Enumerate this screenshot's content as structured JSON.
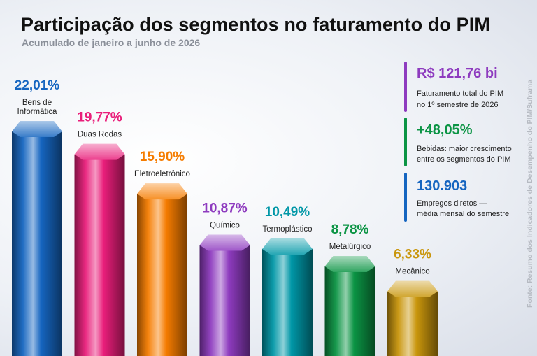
{
  "header": {
    "title": "Participação dos segmentos no faturamento do PIM",
    "subtitle": "Acumulado de janeiro a junho de 2026"
  },
  "chart_data": {
    "type": "bar",
    "categories": [
      "Bens de Informática",
      "Duas Rodas",
      "Eletroeletrônico",
      "Químico",
      "Termoplástico",
      "Metalúrgico",
      "Mecânico"
    ],
    "category_lines": [
      [
        "Bens de",
        "Informática"
      ],
      [
        "Duas Rodas"
      ],
      [
        "Eletroeletrônico"
      ],
      [
        "Químico"
      ],
      [
        "Termoplástico"
      ],
      [
        "Metalúrgico"
      ],
      [
        "Mecânico"
      ]
    ],
    "values": [
      22.01,
      19.77,
      15.9,
      10.87,
      10.49,
      8.78,
      6.33
    ],
    "value_labels": [
      "22,01%",
      "19,77%",
      "15,90%",
      "10,87%",
      "10,49%",
      "8,78%",
      "6,33%"
    ],
    "colors": [
      "#1565c0",
      "#e91e7a",
      "#f57c00",
      "#8e3bbf",
      "#0097a7",
      "#0b9444",
      "#c9960c"
    ],
    "xlabel": "",
    "ylabel": "",
    "grid": false
  },
  "kpis": [
    {
      "value": "R$ 121,76 bi",
      "lines": [
        "Faturamento total do PIM",
        "no 1º semestre de 2026"
      ],
      "color": "#8e3bbf"
    },
    {
      "value": "+48,05%",
      "lines": [
        "Bebidas: maior crescimento",
        "entre os segmentos do PIM"
      ],
      "color": "#0b9444"
    },
    {
      "value": "130.903",
      "lines": [
        "Empregos diretos —",
        "média mensal do semestre"
      ],
      "color": "#1565c0"
    }
  ],
  "source": "Fonte: Resumo dos Indicadores de Desempenho do PIM/Suframa"
}
